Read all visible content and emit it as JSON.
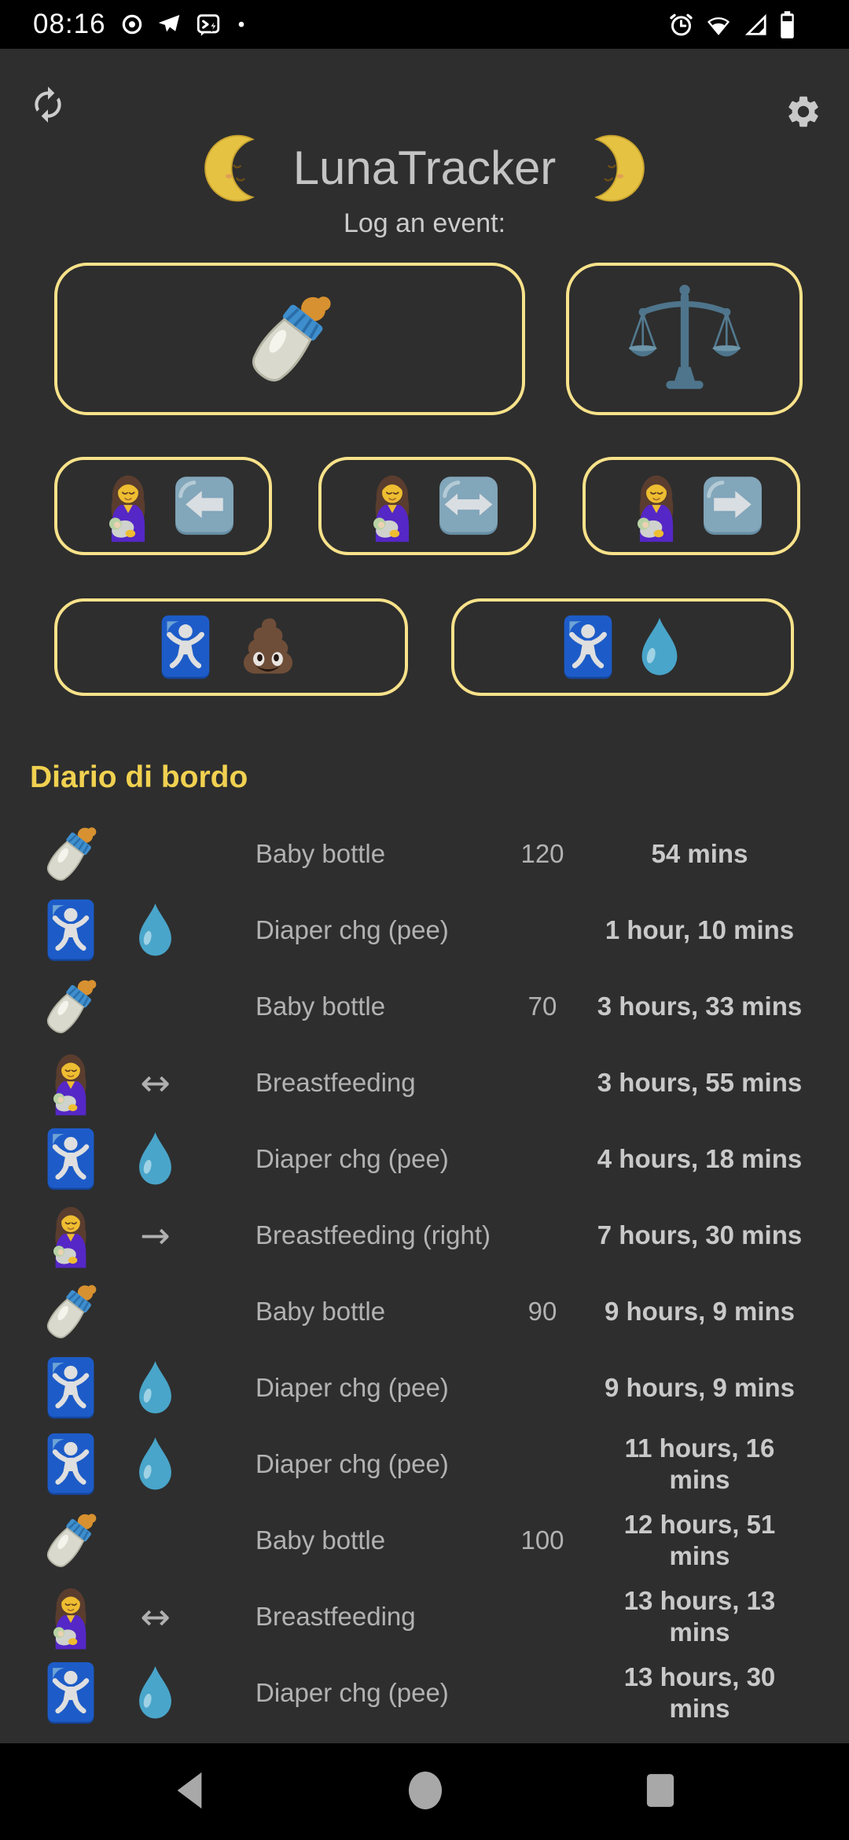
{
  "status_bar": {
    "time": "08:16",
    "left_icons": [
      "record-icon",
      "telegram-icon",
      "message-lightning-icon",
      "notification-dot-icon"
    ],
    "right_icons": [
      "alarm-icon",
      "wifi-icon",
      "signal-icon",
      "battery-icon"
    ]
  },
  "header": {
    "sync_icon": "sync-icon",
    "settings_icon": "gear-icon",
    "left_moon_icon": "waning-crescent-moon-face-icon",
    "title": "LunaTracker",
    "right_moon_icon": "waxing-crescent-moon-face-icon",
    "subtitle": "Log an event:"
  },
  "log_buttons": {
    "rows": [
      [
        {
          "name": "log-baby-bottle-button",
          "icons": [
            "baby-bottle-icon"
          ]
        },
        {
          "name": "log-weight-button",
          "icons": [
            "balance-scale-icon"
          ]
        }
      ],
      [
        {
          "name": "log-breastfeeding-left-button",
          "icons": [
            "breastfeeding-icon",
            "arrow-left-button-icon"
          ]
        },
        {
          "name": "log-breastfeeding-both-button",
          "icons": [
            "breastfeeding-icon",
            "arrow-left-right-button-icon"
          ]
        },
        {
          "name": "log-breastfeeding-right-button",
          "icons": [
            "breastfeeding-icon",
            "arrow-right-button-icon"
          ]
        }
      ],
      [
        {
          "name": "log-diaper-poop-button",
          "icons": [
            "baby-symbol-icon",
            "poop-icon"
          ]
        },
        {
          "name": "log-diaper-pee-button",
          "icons": [
            "baby-symbol-icon",
            "droplet-icon"
          ]
        }
      ]
    ]
  },
  "journal": {
    "heading": "Diario di bordo",
    "entries": [
      {
        "icons": [
          "baby-bottle-icon"
        ],
        "name": "Baby bottle",
        "quantity": "120",
        "elapsed": "54 mins"
      },
      {
        "icons": [
          "baby-symbol-icon",
          "droplet-icon"
        ],
        "name": "Diaper chg (pee)",
        "quantity": "",
        "elapsed": "1 hour, 10 mins"
      },
      {
        "icons": [
          "baby-bottle-icon"
        ],
        "name": "Baby bottle",
        "quantity": "70",
        "elapsed": "3 hours, 33 mins"
      },
      {
        "icons": [
          "breastfeeding-icon",
          "arrow-both-glyph"
        ],
        "name": "Breastfeeding",
        "quantity": "",
        "elapsed": "3 hours, 55 mins"
      },
      {
        "icons": [
          "baby-symbol-icon",
          "droplet-icon"
        ],
        "name": "Diaper chg (pee)",
        "quantity": "",
        "elapsed": "4 hours, 18 mins"
      },
      {
        "icons": [
          "breastfeeding-icon",
          "arrow-right-glyph"
        ],
        "name": "Breastfeeding (right)",
        "quantity": "",
        "elapsed": "7 hours, 30 mins"
      },
      {
        "icons": [
          "baby-bottle-icon"
        ],
        "name": "Baby bottle",
        "quantity": "90",
        "elapsed": "9 hours, 9 mins"
      },
      {
        "icons": [
          "baby-symbol-icon",
          "droplet-icon"
        ],
        "name": "Diaper chg (pee)",
        "quantity": "",
        "elapsed": "9 hours, 9 mins"
      },
      {
        "icons": [
          "baby-symbol-icon",
          "droplet-icon"
        ],
        "name": "Diaper chg (pee)",
        "quantity": "",
        "elapsed": "11 hours, 16 mins"
      },
      {
        "icons": [
          "baby-bottle-icon"
        ],
        "name": "Baby bottle",
        "quantity": "100",
        "elapsed": "12 hours, 51 mins"
      },
      {
        "icons": [
          "breastfeeding-icon",
          "arrow-both-glyph"
        ],
        "name": "Breastfeeding",
        "quantity": "",
        "elapsed": "13 hours, 13 mins"
      },
      {
        "icons": [
          "baby-symbol-icon",
          "droplet-icon"
        ],
        "name": "Diaper chg (pee)",
        "quantity": "",
        "elapsed": "13 hours, 30 mins"
      }
    ]
  },
  "glyphs": {
    "arrow-both-glyph": "↔",
    "arrow-right-glyph": "→"
  },
  "nav_bar": {
    "items": [
      {
        "name": "back-button",
        "icon": "back-icon"
      },
      {
        "name": "home-button",
        "icon": "home-icon"
      },
      {
        "name": "recents-button",
        "icon": "recents-icon"
      }
    ]
  },
  "colors": {
    "background": "#2e2e2e",
    "bar_black": "#000000",
    "accent_border": "#f8e28a",
    "heading_yellow": "#f1d150",
    "text_gray": "#b2b2b2",
    "time_gray": "#c9c9c9"
  }
}
